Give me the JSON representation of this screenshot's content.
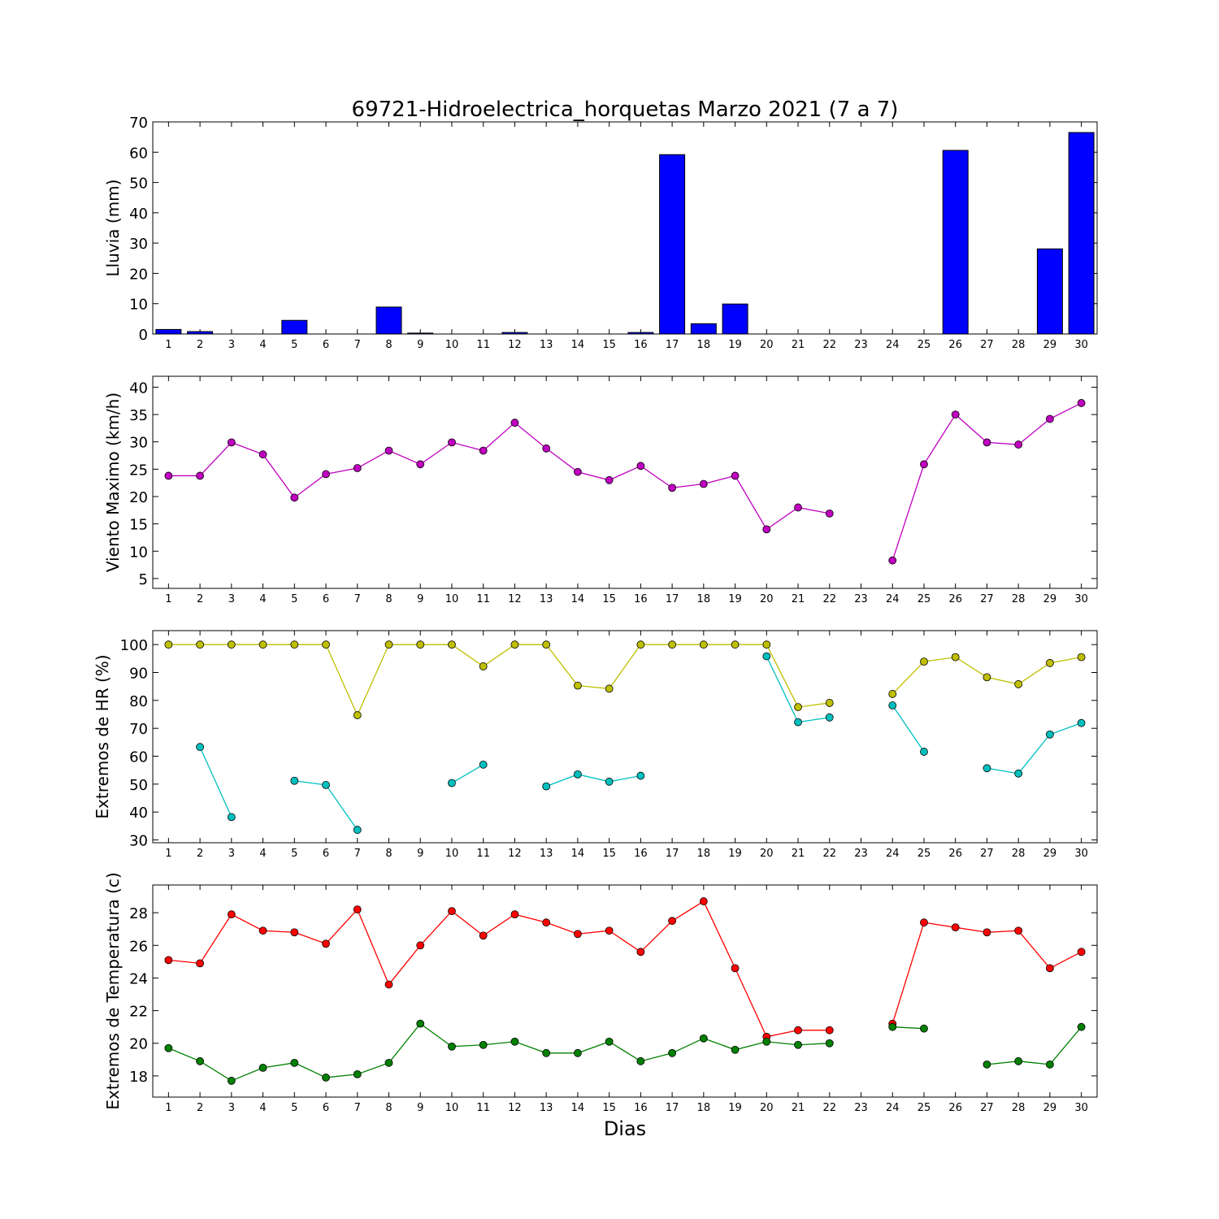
{
  "title": "69721-Hidroelectrica_horquetas Marzo 2021  (7 a 7)",
  "xlabel": "Dias",
  "chart_data": [
    {
      "type": "bar",
      "ylabel": "Lluvia (mm)",
      "ylim": [
        0,
        70
      ],
      "yticks": [
        0,
        10,
        20,
        30,
        40,
        50,
        60,
        70
      ],
      "x": [
        1,
        2,
        3,
        4,
        5,
        6,
        7,
        8,
        9,
        10,
        11,
        12,
        13,
        14,
        15,
        16,
        17,
        18,
        19,
        20,
        21,
        22,
        23,
        24,
        25,
        26,
        27,
        28,
        29,
        30
      ],
      "series": [
        {
          "color": "#0000ff",
          "values": [
            1.5,
            0.8,
            0,
            0,
            4.5,
            0,
            0,
            8.9,
            0.3,
            0,
            0,
            0.5,
            0,
            0,
            0,
            0.5,
            59.2,
            3.4,
            9.9,
            0,
            0,
            0,
            0,
            0,
            0,
            60.6,
            0,
            0,
            28.1,
            66.5
          ]
        }
      ]
    },
    {
      "type": "line",
      "ylabel": "Viento Maximo (km/h)",
      "ylim": [
        3.2,
        42
      ],
      "yticks": [
        5,
        10,
        15,
        20,
        25,
        30,
        35,
        40
      ],
      "x": [
        1,
        2,
        3,
        4,
        5,
        6,
        7,
        8,
        9,
        10,
        11,
        12,
        13,
        14,
        15,
        16,
        17,
        18,
        19,
        20,
        21,
        22,
        23,
        24,
        25,
        26,
        27,
        28,
        29,
        30
      ],
      "series": [
        {
          "color": "#bf00bf",
          "values": [
            23.8,
            23.8,
            29.9,
            27.7,
            19.8,
            24.1,
            25.2,
            28.4,
            25.9,
            29.9,
            28.4,
            33.5,
            28.8,
            24.5,
            23.0,
            25.6,
            21.6,
            22.3,
            23.8,
            14.0,
            18.0,
            16.9,
            null,
            8.3,
            25.9,
            35.0,
            29.9,
            29.5,
            34.2,
            37.1
          ]
        }
      ]
    },
    {
      "type": "line",
      "ylabel": "Extremos de HR (%)",
      "ylim": [
        29,
        105
      ],
      "yticks": [
        30,
        40,
        50,
        60,
        70,
        80,
        90,
        100
      ],
      "x": [
        1,
        2,
        3,
        4,
        5,
        6,
        7,
        8,
        9,
        10,
        11,
        12,
        13,
        14,
        15,
        16,
        17,
        18,
        19,
        20,
        21,
        22,
        23,
        24,
        25,
        26,
        27,
        28,
        29,
        30
      ],
      "series": [
        {
          "color": "#bfbf00",
          "values": [
            100,
            100,
            100,
            100,
            100,
            100,
            74.7,
            100,
            100,
            100,
            92.2,
            100,
            100,
            85.3,
            84.2,
            100,
            100,
            100,
            100,
            100,
            77.6,
            79.1,
            null,
            82.3,
            93.9,
            95.5,
            88.3,
            85.8,
            93.4,
            95.5
          ]
        },
        {
          "color": "#00bfbf",
          "values": [
            null,
            63.3,
            38.2,
            null,
            51.2,
            49.7,
            33.6,
            null,
            null,
            50.4,
            57.0,
            null,
            49.2,
            53.5,
            50.9,
            53.0,
            null,
            null,
            null,
            95.8,
            72.2,
            73.9,
            null,
            78.2,
            61.6,
            null,
            55.7,
            53.8,
            67.8,
            71.9
          ]
        }
      ]
    },
    {
      "type": "line",
      "ylabel": "Extremos de Temperatura (c)",
      "ylim": [
        16.7,
        29.7
      ],
      "yticks": [
        18,
        20,
        22,
        24,
        26,
        28
      ],
      "x": [
        1,
        2,
        3,
        4,
        5,
        6,
        7,
        8,
        9,
        10,
        11,
        12,
        13,
        14,
        15,
        16,
        17,
        18,
        19,
        20,
        21,
        22,
        23,
        24,
        25,
        26,
        27,
        28,
        29,
        30
      ],
      "series": [
        {
          "color": "#ff0000",
          "values": [
            25.1,
            24.9,
            27.9,
            26.9,
            26.8,
            26.1,
            28.2,
            23.6,
            26.0,
            28.1,
            26.6,
            27.9,
            27.4,
            26.7,
            26.9,
            25.6,
            27.5,
            28.7,
            24.6,
            20.4,
            20.8,
            20.8,
            null,
            21.2,
            27.4,
            27.1,
            26.8,
            26.9,
            24.6,
            25.6
          ]
        },
        {
          "color": "#008000",
          "values": [
            19.7,
            18.9,
            17.7,
            18.5,
            18.8,
            17.9,
            18.1,
            18.8,
            21.2,
            19.8,
            19.9,
            20.1,
            19.4,
            19.4,
            20.1,
            18.9,
            19.4,
            20.3,
            19.6,
            20.1,
            19.9,
            20.0,
            null,
            21.0,
            20.9,
            null,
            18.7,
            18.9,
            18.7,
            21.0
          ]
        }
      ]
    }
  ]
}
